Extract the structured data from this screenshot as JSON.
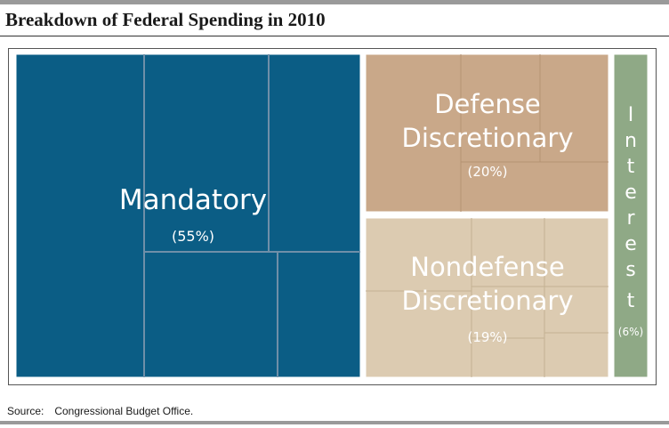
{
  "title": "Breakdown of Federal Spending in 2010",
  "source_label": "Source:",
  "source_text": "Congressional Budget Office.",
  "chart_data": {
    "type": "treemap",
    "title": "Breakdown of Federal Spending in 2010",
    "categories": [
      {
        "name": "Mandatory",
        "percent_label": "(55%)",
        "value": 55,
        "color": "#0b5d85",
        "label_color": "#ffffff"
      },
      {
        "name": "Defense Discretionary",
        "name_lines": [
          "Defense",
          "Discretionary"
        ],
        "percent_label": "(20%)",
        "value": 20,
        "color": "#c9a889",
        "label_color": "#ffffff"
      },
      {
        "name": "Nondefense Discretionary",
        "name_lines": [
          "Nondefense",
          "Discretionary"
        ],
        "percent_label": "(19%)",
        "value": 19,
        "color": "#dccbb1",
        "label_color": "#ffffff"
      },
      {
        "name": "Interest",
        "letters": [
          "I",
          "n",
          "t",
          "e",
          "r",
          "e",
          "s",
          "t"
        ],
        "percent_label": "(6%)",
        "value": 6,
        "color": "#8fa986",
        "label_color": "#ffffff"
      }
    ]
  }
}
